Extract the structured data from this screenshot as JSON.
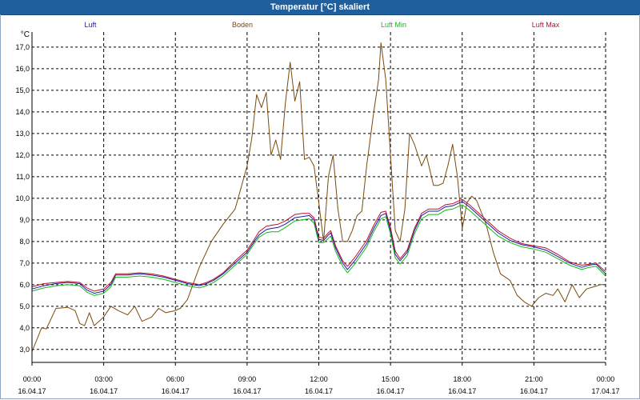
{
  "window": {
    "title": "Temperatur [°C] skaliert"
  },
  "colors": {
    "titlebar": "#1f5f9e",
    "grid": "#000000",
    "axis": "#000000"
  },
  "chart_data": {
    "type": "line",
    "title": "Temperatur [°C] skaliert",
    "ylabel": "°C",
    "xlabel": "",
    "ylim": [
      2.4,
      17.7
    ],
    "xlim": [
      0,
      24
    ],
    "grid": true,
    "legend_placement": "top",
    "y_ticks": [
      "3,0",
      "4,0",
      "5,0",
      "6,0",
      "7,0",
      "8,0",
      "9,0",
      "10,0",
      "11,0",
      "12,0",
      "13,0",
      "14,0",
      "15,0",
      "16,0",
      "17,0"
    ],
    "x_ticks": [
      {
        "time": "00:00",
        "date": "16.04.17"
      },
      {
        "time": "03:00",
        "date": "16.04.17"
      },
      {
        "time": "06:00",
        "date": "16.04.17"
      },
      {
        "time": "09:00",
        "date": "16.04.17"
      },
      {
        "time": "12:00",
        "date": "16.04.17"
      },
      {
        "time": "15:00",
        "date": "16.04.17"
      },
      {
        "time": "18:00",
        "date": "16.04.17"
      },
      {
        "time": "21:00",
        "date": "16.04.17"
      },
      {
        "time": "00:00",
        "date": "17.04.17"
      }
    ],
    "series": [
      {
        "name": "Luft",
        "color": "#1a1aa6",
        "points": [
          [
            0,
            5.8
          ],
          [
            0.5,
            5.95
          ],
          [
            1,
            6.05
          ],
          [
            1.5,
            6.1
          ],
          [
            2,
            6.05
          ],
          [
            2.3,
            5.75
          ],
          [
            2.6,
            5.6
          ],
          [
            3,
            5.7
          ],
          [
            3.3,
            6.0
          ],
          [
            3.5,
            6.45
          ],
          [
            4,
            6.45
          ],
          [
            4.5,
            6.5
          ],
          [
            5,
            6.45
          ],
          [
            5.5,
            6.35
          ],
          [
            6,
            6.2
          ],
          [
            6.5,
            6.05
          ],
          [
            7,
            5.95
          ],
          [
            7.3,
            6.05
          ],
          [
            7.6,
            6.2
          ],
          [
            8,
            6.5
          ],
          [
            8.5,
            7.0
          ],
          [
            9,
            7.5
          ],
          [
            9.3,
            8.0
          ],
          [
            9.5,
            8.3
          ],
          [
            9.8,
            8.55
          ],
          [
            10,
            8.6
          ],
          [
            10.3,
            8.65
          ],
          [
            10.6,
            8.8
          ],
          [
            11,
            9.1
          ],
          [
            11.3,
            9.15
          ],
          [
            11.6,
            9.2
          ],
          [
            11.8,
            9.0
          ],
          [
            12,
            8.1
          ],
          [
            12.2,
            8.05
          ],
          [
            12.4,
            8.3
          ],
          [
            12.5,
            8.4
          ],
          [
            12.7,
            7.7
          ],
          [
            13,
            7.0
          ],
          [
            13.2,
            6.7
          ],
          [
            13.5,
            7.1
          ],
          [
            14,
            7.9
          ],
          [
            14.3,
            8.6
          ],
          [
            14.6,
            9.2
          ],
          [
            14.8,
            9.3
          ],
          [
            15,
            8.5
          ],
          [
            15.2,
            7.4
          ],
          [
            15.4,
            7.1
          ],
          [
            15.7,
            7.5
          ],
          [
            16,
            8.5
          ],
          [
            16.3,
            9.2
          ],
          [
            16.6,
            9.4
          ],
          [
            17,
            9.4
          ],
          [
            17.3,
            9.6
          ],
          [
            17.6,
            9.65
          ],
          [
            18,
            9.85
          ],
          [
            18.3,
            9.6
          ],
          [
            18.6,
            9.3
          ],
          [
            19,
            8.9
          ],
          [
            19.5,
            8.4
          ],
          [
            20,
            8.05
          ],
          [
            20.5,
            7.85
          ],
          [
            21,
            7.75
          ],
          [
            21.5,
            7.6
          ],
          [
            22,
            7.3
          ],
          [
            22.5,
            7.0
          ],
          [
            23,
            6.8
          ],
          [
            23.3,
            6.9
          ],
          [
            23.6,
            6.95
          ],
          [
            24,
            6.5
          ]
        ]
      },
      {
        "name": "Boden",
        "color": "#7a4a0c",
        "points": [
          [
            0,
            2.9
          ],
          [
            0.4,
            4.0
          ],
          [
            0.6,
            3.95
          ],
          [
            1,
            4.9
          ],
          [
            1.5,
            4.95
          ],
          [
            1.8,
            4.8
          ],
          [
            2,
            4.2
          ],
          [
            2.2,
            4.1
          ],
          [
            2.4,
            4.7
          ],
          [
            2.6,
            4.1
          ],
          [
            3,
            4.5
          ],
          [
            3.3,
            5.0
          ],
          [
            3.6,
            4.8
          ],
          [
            4,
            4.6
          ],
          [
            4.3,
            5.0
          ],
          [
            4.6,
            4.3
          ],
          [
            5,
            4.5
          ],
          [
            5.3,
            4.9
          ],
          [
            5.6,
            4.7
          ],
          [
            6,
            4.8
          ],
          [
            6.2,
            4.9
          ],
          [
            6.5,
            5.3
          ],
          [
            7,
            6.8
          ],
          [
            7.5,
            8.0
          ],
          [
            8,
            8.8
          ],
          [
            8.5,
            9.5
          ],
          [
            9,
            11.5
          ],
          [
            9.2,
            12.8
          ],
          [
            9.4,
            14.8
          ],
          [
            9.6,
            14.2
          ],
          [
            9.8,
            14.9
          ],
          [
            10,
            12.0
          ],
          [
            10.2,
            12.7
          ],
          [
            10.4,
            11.8
          ],
          [
            10.6,
            14.4
          ],
          [
            10.8,
            16.3
          ],
          [
            11,
            14.5
          ],
          [
            11.2,
            15.4
          ],
          [
            11.4,
            11.8
          ],
          [
            11.6,
            11.9
          ],
          [
            11.8,
            11.5
          ],
          [
            12,
            9.8
          ],
          [
            12.2,
            8.0
          ],
          [
            12.4,
            11.0
          ],
          [
            12.6,
            12.0
          ],
          [
            12.8,
            9.5
          ],
          [
            13,
            8.0
          ],
          [
            13.2,
            8.0
          ],
          [
            13.4,
            8.5
          ],
          [
            13.6,
            9.2
          ],
          [
            13.8,
            9.4
          ],
          [
            14,
            11.5
          ],
          [
            14.3,
            14.0
          ],
          [
            14.5,
            15.5
          ],
          [
            14.6,
            17.2
          ],
          [
            14.8,
            15.5
          ],
          [
            15,
            12.0
          ],
          [
            15.2,
            8.5
          ],
          [
            15.4,
            8.0
          ],
          [
            15.6,
            9.5
          ],
          [
            15.8,
            13.0
          ],
          [
            16,
            12.5
          ],
          [
            16.3,
            11.5
          ],
          [
            16.5,
            12.0
          ],
          [
            16.8,
            10.6
          ],
          [
            17,
            10.6
          ],
          [
            17.2,
            10.7
          ],
          [
            17.4,
            11.5
          ],
          [
            17.6,
            12.5
          ],
          [
            17.8,
            11.0
          ],
          [
            18,
            8.6
          ],
          [
            18.2,
            9.8
          ],
          [
            18.4,
            10.1
          ],
          [
            18.6,
            9.9
          ],
          [
            19,
            8.8
          ],
          [
            19.3,
            7.5
          ],
          [
            19.6,
            6.5
          ],
          [
            20,
            6.2
          ],
          [
            20.3,
            5.5
          ],
          [
            20.6,
            5.2
          ],
          [
            20.9,
            5.0
          ],
          [
            21.2,
            5.4
          ],
          [
            21.5,
            5.6
          ],
          [
            21.8,
            5.5
          ],
          [
            22,
            5.8
          ],
          [
            22.3,
            5.2
          ],
          [
            22.6,
            6.0
          ],
          [
            22.9,
            5.4
          ],
          [
            23.2,
            5.8
          ],
          [
            23.5,
            5.9
          ],
          [
            23.8,
            6.0
          ],
          [
            24,
            6.0
          ]
        ]
      },
      {
        "name": "Luft Min",
        "color": "#12b81a",
        "points": [
          [
            0,
            5.7
          ],
          [
            0.5,
            5.85
          ],
          [
            1,
            5.95
          ],
          [
            1.5,
            6.0
          ],
          [
            2,
            5.95
          ],
          [
            2.3,
            5.65
          ],
          [
            2.6,
            5.5
          ],
          [
            3,
            5.6
          ],
          [
            3.3,
            5.9
          ],
          [
            3.5,
            6.35
          ],
          [
            4,
            6.35
          ],
          [
            4.5,
            6.4
          ],
          [
            5,
            6.35
          ],
          [
            5.5,
            6.25
          ],
          [
            6,
            6.1
          ],
          [
            6.5,
            5.95
          ],
          [
            7,
            5.85
          ],
          [
            7.3,
            5.95
          ],
          [
            7.6,
            6.1
          ],
          [
            8,
            6.4
          ],
          [
            8.5,
            6.9
          ],
          [
            9,
            7.4
          ],
          [
            9.3,
            7.9
          ],
          [
            9.5,
            8.2
          ],
          [
            9.8,
            8.4
          ],
          [
            10,
            8.45
          ],
          [
            10.3,
            8.45
          ],
          [
            10.6,
            8.65
          ],
          [
            11,
            8.95
          ],
          [
            11.3,
            9.0
          ],
          [
            11.6,
            9.05
          ],
          [
            11.8,
            8.85
          ],
          [
            12,
            7.95
          ],
          [
            12.2,
            7.95
          ],
          [
            12.4,
            8.15
          ],
          [
            12.5,
            8.25
          ],
          [
            12.7,
            7.55
          ],
          [
            13,
            6.85
          ],
          [
            13.2,
            6.55
          ],
          [
            13.5,
            6.95
          ],
          [
            14,
            7.75
          ],
          [
            14.3,
            8.45
          ],
          [
            14.6,
            9.05
          ],
          [
            14.8,
            9.15
          ],
          [
            15,
            8.35
          ],
          [
            15.2,
            7.25
          ],
          [
            15.4,
            6.95
          ],
          [
            15.7,
            7.35
          ],
          [
            16,
            8.35
          ],
          [
            16.3,
            9.05
          ],
          [
            16.6,
            9.25
          ],
          [
            17,
            9.25
          ],
          [
            17.3,
            9.45
          ],
          [
            17.6,
            9.5
          ],
          [
            18,
            9.7
          ],
          [
            18.3,
            9.45
          ],
          [
            18.6,
            9.15
          ],
          [
            19,
            8.75
          ],
          [
            19.5,
            8.25
          ],
          [
            20,
            7.95
          ],
          [
            20.5,
            7.75
          ],
          [
            21,
            7.65
          ],
          [
            21.5,
            7.5
          ],
          [
            22,
            7.2
          ],
          [
            22.5,
            6.9
          ],
          [
            23,
            6.7
          ],
          [
            23.3,
            6.8
          ],
          [
            23.6,
            6.85
          ],
          [
            24,
            6.4
          ]
        ]
      },
      {
        "name": "Luft Max",
        "color": "#c0102c",
        "points": [
          [
            0,
            5.9
          ],
          [
            0.5,
            6.05
          ],
          [
            1,
            6.1
          ],
          [
            1.5,
            6.15
          ],
          [
            2,
            6.1
          ],
          [
            2.3,
            5.85
          ],
          [
            2.6,
            5.7
          ],
          [
            3,
            5.8
          ],
          [
            3.3,
            6.1
          ],
          [
            3.5,
            6.5
          ],
          [
            4,
            6.5
          ],
          [
            4.5,
            6.55
          ],
          [
            5,
            6.5
          ],
          [
            5.5,
            6.4
          ],
          [
            6,
            6.25
          ],
          [
            6.5,
            6.1
          ],
          [
            7,
            6.0
          ],
          [
            7.3,
            6.1
          ],
          [
            7.6,
            6.25
          ],
          [
            8,
            6.55
          ],
          [
            8.5,
            7.1
          ],
          [
            9,
            7.6
          ],
          [
            9.3,
            8.1
          ],
          [
            9.5,
            8.45
          ],
          [
            9.8,
            8.7
          ],
          [
            10,
            8.75
          ],
          [
            10.3,
            8.8
          ],
          [
            10.6,
            8.95
          ],
          [
            11,
            9.25
          ],
          [
            11.3,
            9.3
          ],
          [
            11.6,
            9.3
          ],
          [
            11.8,
            9.1
          ],
          [
            12,
            8.2
          ],
          [
            12.2,
            8.15
          ],
          [
            12.4,
            8.4
          ],
          [
            12.5,
            8.5
          ],
          [
            12.7,
            7.8
          ],
          [
            13,
            7.1
          ],
          [
            13.2,
            6.85
          ],
          [
            13.5,
            7.25
          ],
          [
            14,
            8.05
          ],
          [
            14.3,
            8.75
          ],
          [
            14.6,
            9.35
          ],
          [
            14.8,
            9.4
          ],
          [
            15,
            8.65
          ],
          [
            15.2,
            7.55
          ],
          [
            15.4,
            7.2
          ],
          [
            15.7,
            7.6
          ],
          [
            16,
            8.6
          ],
          [
            16.3,
            9.3
          ],
          [
            16.6,
            9.5
          ],
          [
            17,
            9.5
          ],
          [
            17.3,
            9.7
          ],
          [
            17.6,
            9.75
          ],
          [
            18,
            9.95
          ],
          [
            18.3,
            9.7
          ],
          [
            18.6,
            9.4
          ],
          [
            19,
            9.0
          ],
          [
            19.5,
            8.5
          ],
          [
            20,
            8.15
          ],
          [
            20.5,
            7.9
          ],
          [
            21,
            7.8
          ],
          [
            21.5,
            7.7
          ],
          [
            22,
            7.4
          ],
          [
            22.5,
            7.05
          ],
          [
            23,
            6.9
          ],
          [
            23.3,
            6.95
          ],
          [
            23.6,
            7.0
          ],
          [
            24,
            6.6
          ]
        ]
      }
    ]
  }
}
